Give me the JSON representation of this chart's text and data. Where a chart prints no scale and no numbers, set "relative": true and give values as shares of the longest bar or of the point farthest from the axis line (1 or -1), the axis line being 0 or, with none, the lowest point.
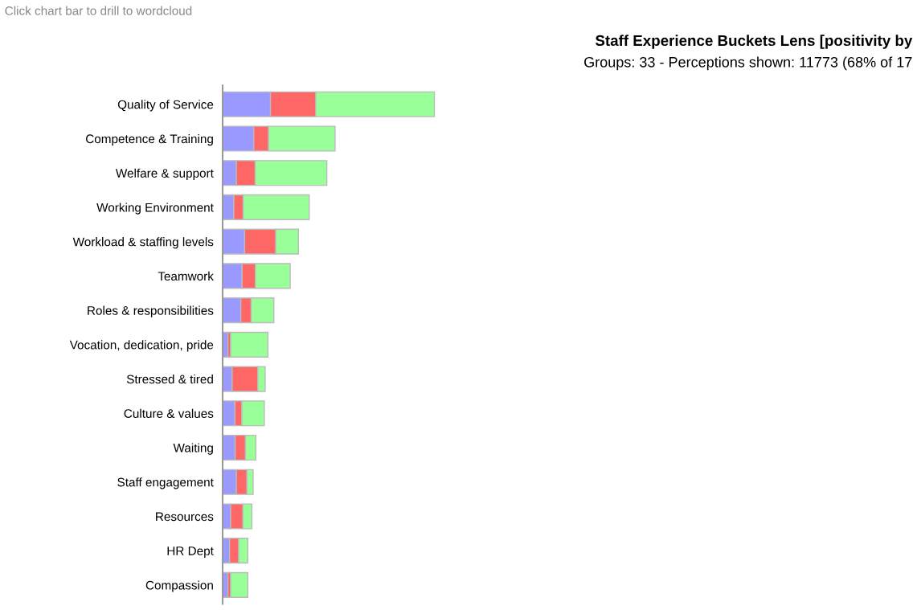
{
  "chart_data": {
    "type": "bar",
    "orientation": "horizontal",
    "stacked": true,
    "relative": true,
    "title": "Staff Experience Buckets Lens [positivity by",
    "subtitle": "Groups: 33 - Perceptions shown: 11773 (68% of 17",
    "annotations": [
      "Click chart bar to drill to wordcloud"
    ],
    "categories": [
      "Quality of Service",
      "Competence & Training",
      "Welfare & support",
      "Working Environment",
      "Workload & staffing levels",
      "Teamwork",
      "Roles & responsibilities",
      "Vocation, dedication, pride",
      "Stressed & tired",
      "Culture & values",
      "Waiting",
      "Staff engagement",
      "Resources",
      "HR Dept",
      "Compassion"
    ],
    "series": [
      {
        "color": "#9999ff",
        "values": [
          0.226,
          0.147,
          0.065,
          0.053,
          0.104,
          0.092,
          0.086,
          0.025,
          0.045,
          0.058,
          0.059,
          0.065,
          0.038,
          0.033,
          0.025
        ]
      },
      {
        "color": "#ff6666",
        "values": [
          0.214,
          0.07,
          0.089,
          0.044,
          0.147,
          0.063,
          0.049,
          0.013,
          0.121,
          0.033,
          0.049,
          0.05,
          0.058,
          0.043,
          0.013
        ]
      },
      {
        "color": "#99ff99",
        "values": [
          0.56,
          0.314,
          0.338,
          0.312,
          0.107,
          0.164,
          0.107,
          0.176,
          0.035,
          0.106,
          0.049,
          0.029,
          0.042,
          0.043,
          0.081
        ]
      }
    ],
    "legend": false
  }
}
